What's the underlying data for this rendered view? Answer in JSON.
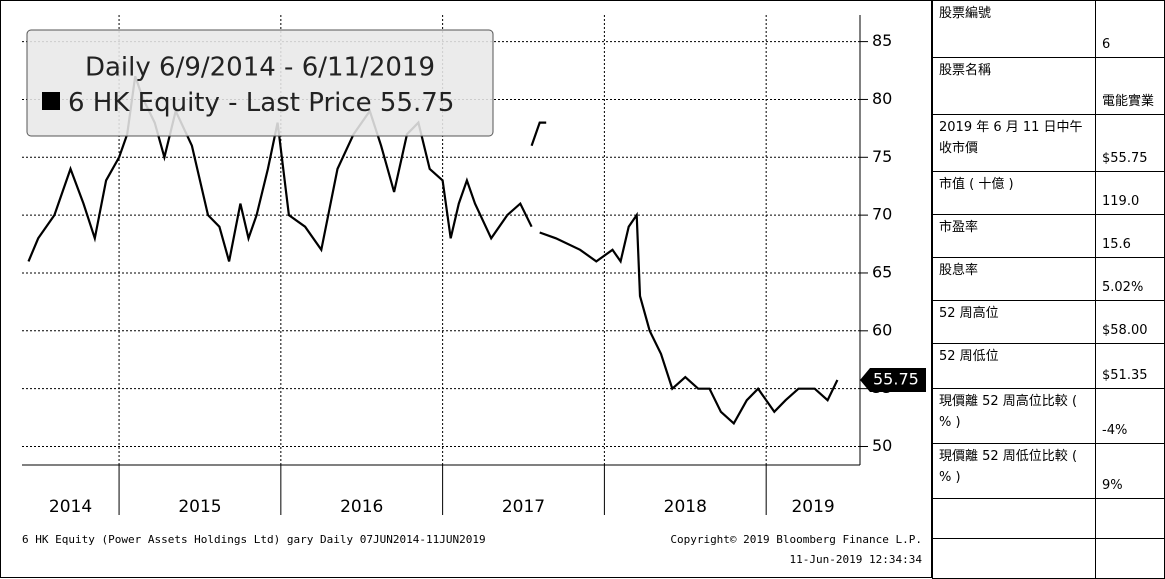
{
  "chart_data": {
    "type": "line",
    "legend_title": "Daily 6/9/2014 - 6/11/2019",
    "legend_value": "55.75",
    "footer_left": "6 HK Equity (Power Assets Holdings Ltd) gary  Daily 07JUN2014-11JUN2019",
    "footer_right": "Copyright© 2019 Bloomberg Finance L.P.",
    "footer_time": "11-Jun-2019 12:34:34",
    "year_labels": [
      "2014",
      "2015",
      "2016",
      "2017",
      "2018",
      "2019"
    ],
    "xlim": [
      2014.4,
      2019.58
    ],
    "xticks": [
      2015,
      2016,
      2017,
      2018,
      2019
    ],
    "ylim": [
      48.4,
      87.3
    ],
    "yticks": [
      50,
      55,
      60,
      65,
      70,
      75,
      80,
      85
    ],
    "grid": true,
    "series": [
      {
        "name": "6 HK Equity - Last Price",
        "color": "#000000",
        "x": [
          2014.44,
          2014.5,
          2014.6,
          2014.7,
          2014.78,
          2014.85,
          2014.92,
          2015.0,
          2015.05,
          2015.1,
          2015.15,
          2015.22,
          2015.28,
          2015.35,
          2015.45,
          2015.55,
          2015.62,
          2015.68,
          2015.75,
          2015.8,
          2015.85,
          2015.92,
          2015.98,
          2016.05,
          2016.15,
          2016.25,
          2016.35,
          2016.45,
          2016.55,
          2016.62,
          2016.7,
          2016.78,
          2016.85,
          2016.92,
          2017.0,
          2017.05,
          2017.1,
          2017.15,
          2017.2,
          2017.3,
          2017.4,
          2017.48,
          2017.55,
          null,
          2017.55,
          2017.6,
          2017.64,
          null,
          2017.6,
          2017.7,
          2017.85,
          2017.95,
          2018.05,
          2018.1,
          2018.15,
          2018.2,
          2018.22,
          2018.28,
          2018.35,
          2018.42,
          2018.5,
          2018.58,
          2018.65,
          2018.72,
          2018.8,
          2018.88,
          2018.95,
          2019.05,
          2019.12,
          2019.2,
          2019.3,
          2019.38,
          2019.44
        ],
        "values": [
          66,
          68,
          70,
          74,
          71,
          68,
          73,
          75,
          77,
          82,
          80,
          78,
          75,
          79,
          76,
          70,
          69,
          66,
          71,
          68,
          70,
          74,
          78,
          70,
          69,
          67,
          74,
          77,
          79,
          76,
          72,
          77,
          78,
          74,
          73,
          68,
          71,
          73,
          71,
          68,
          70,
          71,
          69,
          null,
          76,
          78,
          78,
          null,
          68.5,
          68,
          67,
          66,
          67,
          66,
          69,
          70,
          63,
          60,
          58,
          55,
          56,
          55,
          55,
          53,
          52,
          54,
          55,
          53,
          54,
          55,
          55,
          54,
          55.75
        ]
      }
    ]
  },
  "table": {
    "rows": [
      [
        "股票編號",
        "6"
      ],
      [
        "股票名稱",
        "電能實業"
      ],
      [
        "2019 年 6 月 11 日中午收市價",
        "$55.75"
      ],
      [
        "市值 ( 十億 )",
        "119.0"
      ],
      [
        "市盈率",
        "15.6"
      ],
      [
        "股息率",
        "5.02%"
      ],
      [
        "52 周高位",
        "$58.00"
      ],
      [
        "52 周低位",
        "$51.35"
      ],
      [
        "現價離 52 周高位比較 ( % )",
        "-4%"
      ],
      [
        "現價離 52 周低位比較 ( % )",
        "9%"
      ]
    ]
  }
}
